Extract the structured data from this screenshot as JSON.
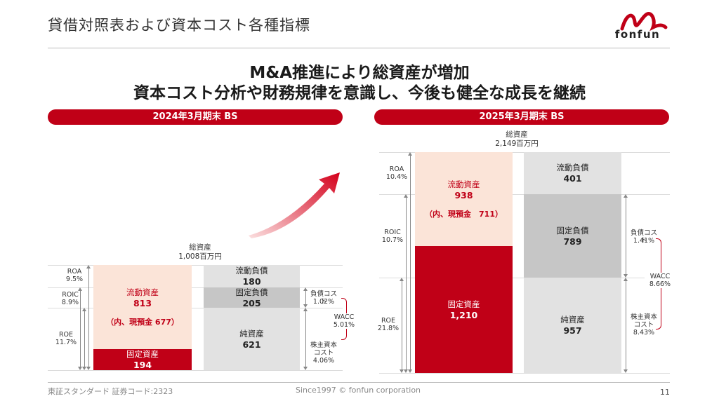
{
  "header": {
    "title": "貸借対照表および資本コスト各種指標",
    "logo_text": "fonfun"
  },
  "headline": {
    "line1": "M&A推進により総資産が増加",
    "line2": "資本コスト分析や財務規律を意識し、今後も健全な成長を継続"
  },
  "bs2024": {
    "label": "2024年3月期末 BS",
    "total_label": "総資産",
    "total_value": "1,008百万円",
    "current_assets_label": "流動資産",
    "current_assets_value": "813",
    "cash_note": "（内、現預金 677）",
    "fixed_assets_label": "固定資産",
    "fixed_assets_value": "194",
    "current_liab_label": "流動負債",
    "current_liab_value": "180",
    "fixed_liab_label": "固定負債",
    "fixed_liab_value": "205",
    "net_assets_label": "純資産",
    "net_assets_value": "621",
    "roa_label": "ROA",
    "roa_value": "9.5%",
    "roic_label": "ROIC",
    "roic_value": "8.9%",
    "roe_label": "ROE",
    "roe_value": "11.7%",
    "debt_cost_label": "負債コスト",
    "debt_cost_value": "1.02%",
    "wacc_label": "WACC",
    "wacc_value": "5.01%",
    "equity_cost_label1": "株主資本",
    "equity_cost_label2": "コスト",
    "equity_cost_value": "4.06%"
  },
  "bs2025": {
    "label": "2025年3月期末 BS",
    "total_label": "総資産",
    "total_value": "2,149百万円",
    "current_assets_label": "流動資産",
    "current_assets_value": "938",
    "cash_note": "（内、現預金　711）",
    "fixed_assets_label": "固定資産",
    "fixed_assets_value": "1,210",
    "current_liab_label": "流動負債",
    "current_liab_value": "401",
    "fixed_liab_label": "固定負債",
    "fixed_liab_value": "789",
    "net_assets_label": "純資産",
    "net_assets_value": "957",
    "roa_label": "ROA",
    "roa_value": "10.4%",
    "roic_label": "ROIC",
    "roic_value": "10.7%",
    "roe_label": "ROE",
    "roe_value": "21.8%",
    "debt_cost_label": "負債コスト",
    "debt_cost_value": "1.41%",
    "wacc_label": "WACC",
    "wacc_value": "8.66%",
    "equity_cost_label1": "株主資本",
    "equity_cost_label2": "コスト",
    "equity_cost_value": "8.43%"
  },
  "footer": {
    "left": "東証スタンダード 証券コード:2323",
    "center": "Since1997 © fonfun corporation",
    "page": "11"
  },
  "colors": {
    "brand_red": "#c00017",
    "light_peach": "#fbe4d8",
    "light_gray": "#e2e2e2",
    "mid_gray": "#c6c6c6"
  }
}
